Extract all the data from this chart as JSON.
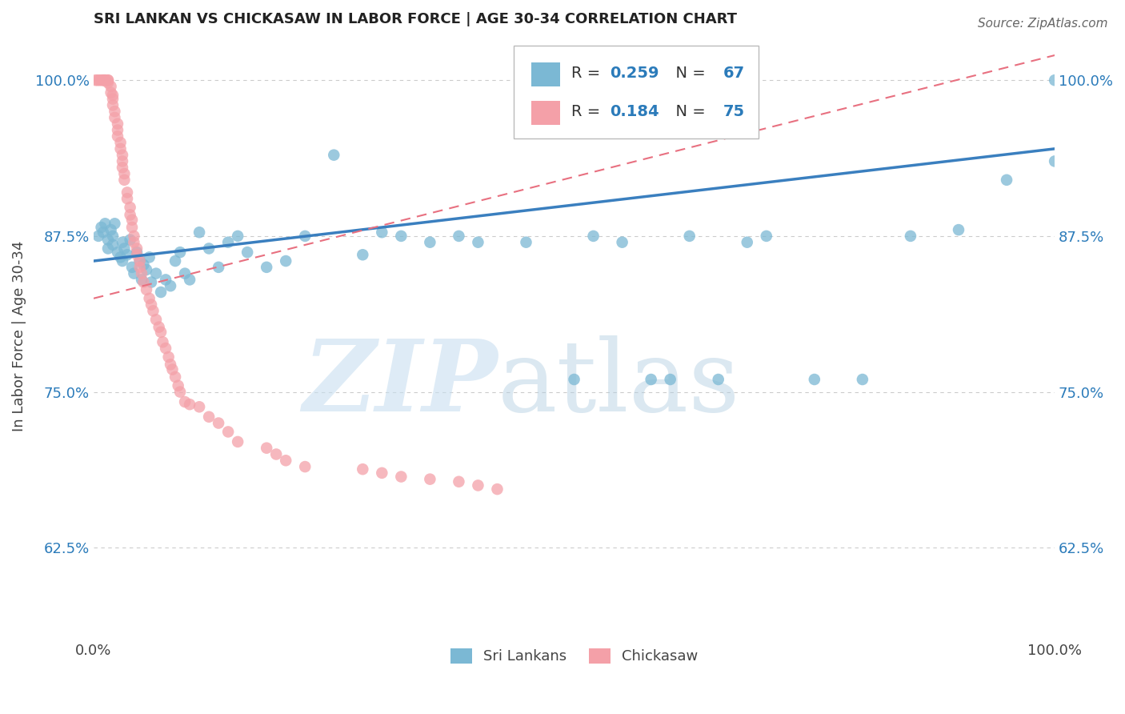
{
  "title": "SRI LANKAN VS CHICKASAW IN LABOR FORCE | AGE 30-34 CORRELATION CHART",
  "source": "Source: ZipAtlas.com",
  "ylabel": "In Labor Force | Age 30-34",
  "ytick_labels": [
    "62.5%",
    "75.0%",
    "87.5%",
    "100.0%"
  ],
  "ytick_values": [
    0.625,
    0.75,
    0.875,
    1.0
  ],
  "xlim": [
    0.0,
    1.0
  ],
  "ylim": [
    0.555,
    1.035
  ],
  "sri_lankan_color": "#7bb8d4",
  "chickasaw_color": "#f4a0a8",
  "sri_lankan_R": 0.259,
  "sri_lankan_N": 67,
  "chickasaw_R": 0.184,
  "chickasaw_N": 75,
  "blue_text_color": "#2b7bba",
  "sri_lankans_label": "Sri Lankans",
  "chickasaw_label": "Chickasaw",
  "sri_lankans_x": [
    0.005,
    0.008,
    0.01,
    0.012,
    0.015,
    0.015,
    0.018,
    0.02,
    0.02,
    0.022,
    0.025,
    0.028,
    0.03,
    0.03,
    0.032,
    0.035,
    0.038,
    0.04,
    0.042,
    0.045,
    0.048,
    0.05,
    0.052,
    0.055,
    0.058,
    0.06,
    0.065,
    0.07,
    0.075,
    0.08,
    0.085,
    0.09,
    0.095,
    0.1,
    0.11,
    0.12,
    0.13,
    0.14,
    0.15,
    0.16,
    0.18,
    0.2,
    0.22,
    0.25,
    0.28,
    0.3,
    0.32,
    0.35,
    0.38,
    0.4,
    0.45,
    0.5,
    0.52,
    0.55,
    0.58,
    0.6,
    0.62,
    0.65,
    0.68,
    0.7,
    0.75,
    0.8,
    0.85,
    0.9,
    0.95,
    1.0,
    1.0
  ],
  "sri_lankans_y": [
    0.875,
    0.882,
    0.878,
    0.885,
    0.872,
    0.865,
    0.88,
    0.868,
    0.875,
    0.885,
    0.862,
    0.858,
    0.855,
    0.87,
    0.865,
    0.86,
    0.872,
    0.85,
    0.845,
    0.862,
    0.855,
    0.84,
    0.852,
    0.848,
    0.858,
    0.838,
    0.845,
    0.83,
    0.84,
    0.835,
    0.855,
    0.862,
    0.845,
    0.84,
    0.878,
    0.865,
    0.85,
    0.87,
    0.875,
    0.862,
    0.85,
    0.855,
    0.875,
    0.94,
    0.86,
    0.878,
    0.875,
    0.87,
    0.875,
    0.87,
    0.87,
    0.76,
    0.875,
    0.87,
    0.76,
    0.76,
    0.875,
    0.76,
    0.87,
    0.875,
    0.76,
    0.76,
    0.875,
    0.88,
    0.92,
    0.935,
    1.0
  ],
  "chickasaw_x": [
    0.002,
    0.004,
    0.006,
    0.008,
    0.01,
    0.01,
    0.012,
    0.012,
    0.015,
    0.015,
    0.015,
    0.018,
    0.018,
    0.02,
    0.02,
    0.02,
    0.022,
    0.022,
    0.025,
    0.025,
    0.025,
    0.028,
    0.028,
    0.03,
    0.03,
    0.03,
    0.032,
    0.032,
    0.035,
    0.035,
    0.038,
    0.038,
    0.04,
    0.04,
    0.042,
    0.042,
    0.045,
    0.045,
    0.048,
    0.048,
    0.05,
    0.052,
    0.055,
    0.058,
    0.06,
    0.062,
    0.065,
    0.068,
    0.07,
    0.072,
    0.075,
    0.078,
    0.08,
    0.082,
    0.085,
    0.088,
    0.09,
    0.095,
    0.1,
    0.11,
    0.12,
    0.13,
    0.14,
    0.15,
    0.18,
    0.19,
    0.2,
    0.22,
    0.28,
    0.3,
    0.32,
    0.35,
    0.38,
    0.4,
    0.42
  ],
  "chickasaw_y": [
    1.0,
    1.0,
    1.0,
    1.0,
    1.0,
    1.0,
    1.0,
    1.0,
    1.0,
    1.0,
    0.998,
    0.995,
    0.99,
    0.988,
    0.985,
    0.98,
    0.975,
    0.97,
    0.965,
    0.96,
    0.955,
    0.95,
    0.945,
    0.94,
    0.935,
    0.93,
    0.925,
    0.92,
    0.91,
    0.905,
    0.898,
    0.892,
    0.888,
    0.882,
    0.875,
    0.87,
    0.865,
    0.86,
    0.855,
    0.85,
    0.845,
    0.838,
    0.832,
    0.825,
    0.82,
    0.815,
    0.808,
    0.802,
    0.798,
    0.79,
    0.785,
    0.778,
    0.772,
    0.768,
    0.762,
    0.755,
    0.75,
    0.742,
    0.74,
    0.738,
    0.73,
    0.725,
    0.718,
    0.71,
    0.705,
    0.7,
    0.695,
    0.69,
    0.688,
    0.685,
    0.682,
    0.68,
    0.678,
    0.675,
    0.672
  ]
}
